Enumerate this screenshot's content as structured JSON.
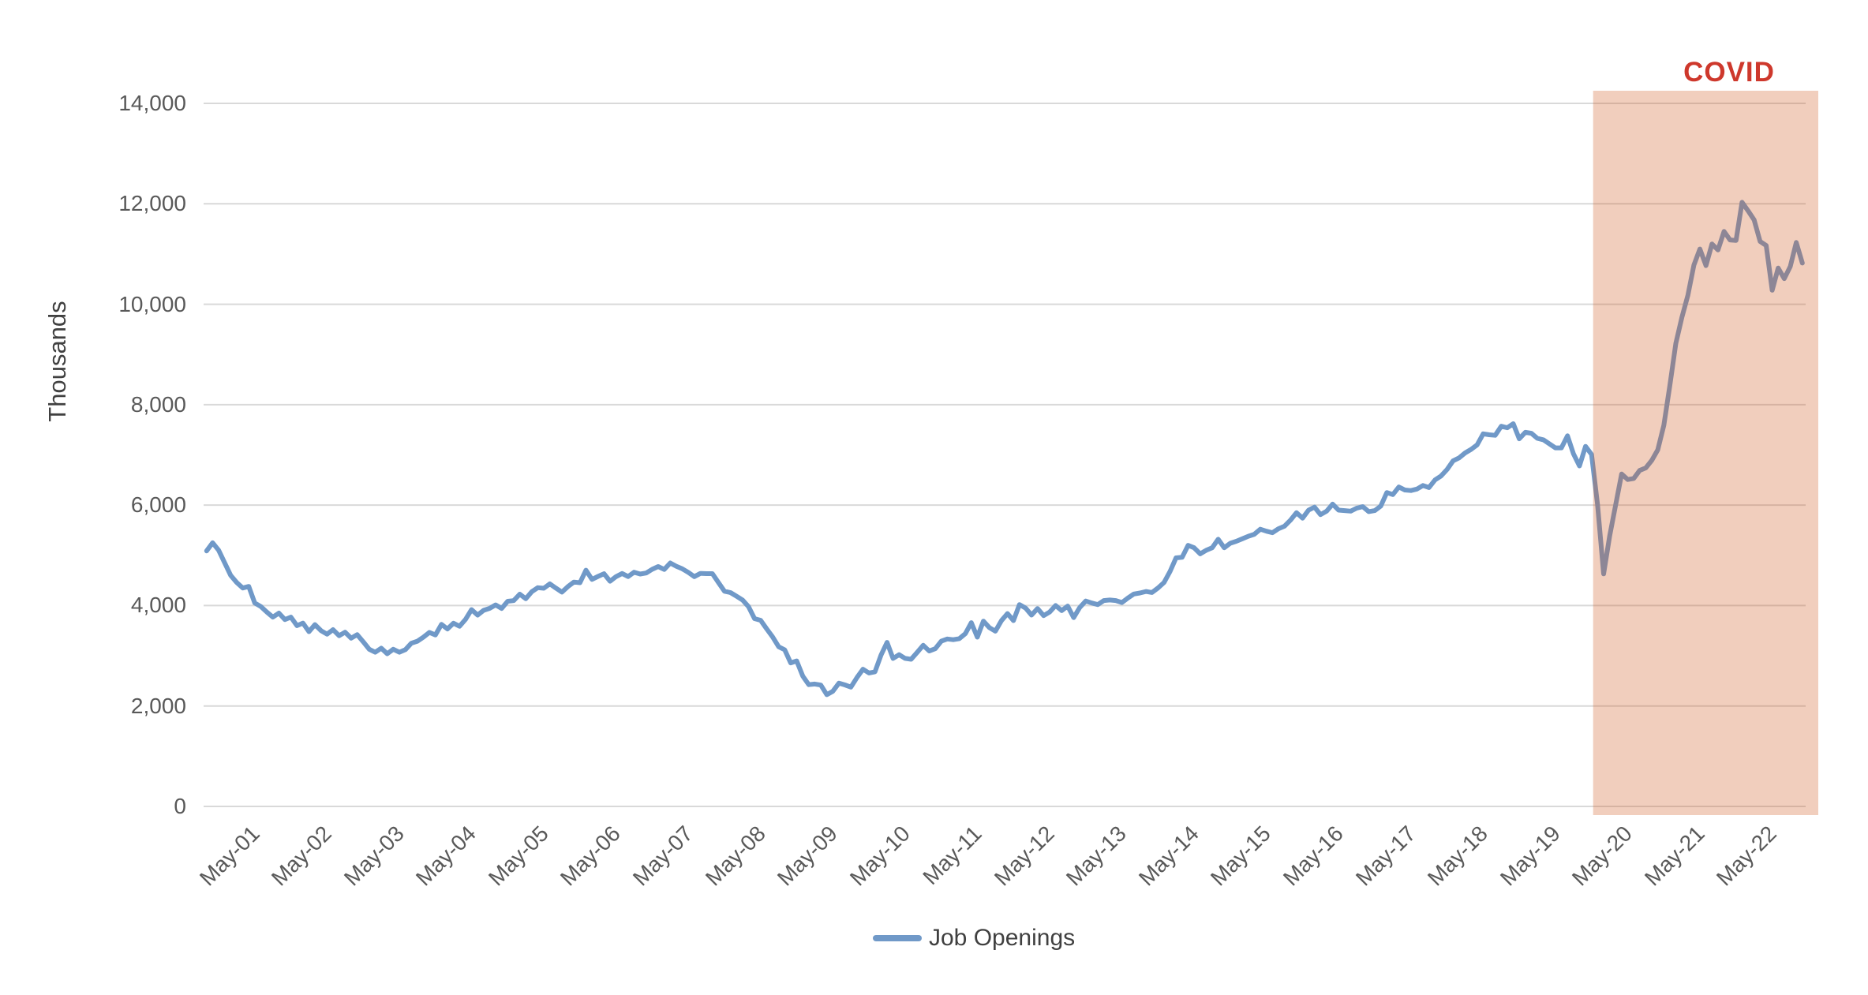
{
  "chart_data": {
    "type": "line",
    "title": "",
    "ylabel": "Thousands",
    "xlabel": "",
    "grid": "horizontal",
    "gridline_color": "#D9D9D9",
    "background_color": "#FFFFFF",
    "tick_label_color": "#595959",
    "ylim": [
      0,
      14000
    ],
    "y_tick_step": 2000,
    "y_tick_labels": [
      "0",
      "2,000",
      "4,000",
      "6,000",
      "8,000",
      "10,000",
      "12,000",
      "14,000"
    ],
    "x_tick_labels": [
      "May-01",
      "May-02",
      "May-03",
      "May-04",
      "May-05",
      "May-06",
      "May-07",
      "May-08",
      "May-09",
      "May-10",
      "May-11",
      "May-12",
      "May-13",
      "May-14",
      "May-15",
      "May-16",
      "May-17",
      "May-18",
      "May-19",
      "May-20",
      "May-21",
      "May-22"
    ],
    "x_first_tick_point_index": 5,
    "x_tick_every_n_points": 12,
    "legend_position": "bottom-center",
    "series": [
      {
        "name": "Job Openings",
        "color": "#7099C8",
        "frequency": "monthly",
        "start_month": "Dec-2000",
        "end_month": "Jan-2023",
        "unit": "thousands",
        "values": [
          5088,
          5250,
          5100,
          4850,
          4600,
          4460,
          4350,
          4380,
          4050,
          3980,
          3870,
          3770,
          3850,
          3720,
          3770,
          3600,
          3650,
          3480,
          3620,
          3500,
          3430,
          3520,
          3400,
          3470,
          3350,
          3420,
          3280,
          3130,
          3070,
          3150,
          3040,
          3130,
          3070,
          3120,
          3250,
          3290,
          3370,
          3465,
          3414,
          3625,
          3534,
          3649,
          3587,
          3726,
          3918,
          3810,
          3905,
          3944,
          4013,
          3942,
          4085,
          4098,
          4226,
          4136,
          4275,
          4355,
          4344,
          4433,
          4347,
          4268,
          4377,
          4467,
          4454,
          4705,
          4521,
          4580,
          4633,
          4485,
          4575,
          4638,
          4577,
          4663,
          4627,
          4648,
          4721,
          4777,
          4718,
          4848,
          4783,
          4731,
          4661,
          4576,
          4640,
          4636,
          4636,
          4459,
          4285,
          4258,
          4186,
          4110,
          3977,
          3740,
          3707,
          3537,
          3375,
          3178,
          3119,
          2858,
          2898,
          2596,
          2425,
          2437,
          2416,
          2225,
          2293,
          2454,
          2419,
          2376,
          2565,
          2733,
          2657,
          2680,
          3016,
          3266,
          2946,
          3021,
          2947,
          2931,
          3065,
          3208,
          3096,
          3140,
          3290,
          3335,
          3320,
          3340,
          3440,
          3660,
          3370,
          3690,
          3560,
          3490,
          3700,
          3840,
          3700,
          4020,
          3950,
          3810,
          3940,
          3800,
          3870,
          4000,
          3900,
          3990,
          3760,
          3960,
          4090,
          4050,
          4020,
          4100,
          4110,
          4100,
          4060,
          4150,
          4230,
          4250,
          4280,
          4260,
          4350,
          4460,
          4680,
          4950,
          4960,
          5200,
          5150,
          5030,
          5100,
          5150,
          5320,
          5150,
          5240,
          5280,
          5330,
          5380,
          5420,
          5520,
          5480,
          5450,
          5530,
          5580,
          5700,
          5850,
          5740,
          5900,
          5960,
          5810,
          5880,
          6020,
          5900,
          5890,
          5880,
          5940,
          5970,
          5870,
          5890,
          5980,
          6250,
          6210,
          6360,
          6300,
          6290,
          6320,
          6390,
          6350,
          6500,
          6580,
          6710,
          6880,
          6940,
          7040,
          7110,
          7200,
          7420,
          7400,
          7390,
          7570,
          7540,
          7620,
          7320,
          7450,
          7430,
          7330,
          7300,
          7220,
          7140,
          7140,
          7380,
          7020,
          6780,
          7170,
          7010,
          6010,
          4630,
          5380,
          6000,
          6620,
          6510,
          6530,
          6690,
          6740,
          6890,
          7100,
          7590,
          8380,
          9220,
          9740,
          10180,
          10780,
          11100,
          10770,
          11200,
          11080,
          11450,
          11280,
          11270,
          12030,
          11860,
          11680,
          11250,
          11170,
          10280,
          10720,
          10510,
          10750,
          11230,
          10820
        ]
      }
    ],
    "annotations": {
      "covid_label": "COVID",
      "covid_label_color": "#CE382C",
      "region_start_month": "Feb-2020",
      "region_extends_to": "right edge of plot",
      "region_overlay_color": "#D25C23",
      "region_overlay_opacity": 0.3
    }
  }
}
